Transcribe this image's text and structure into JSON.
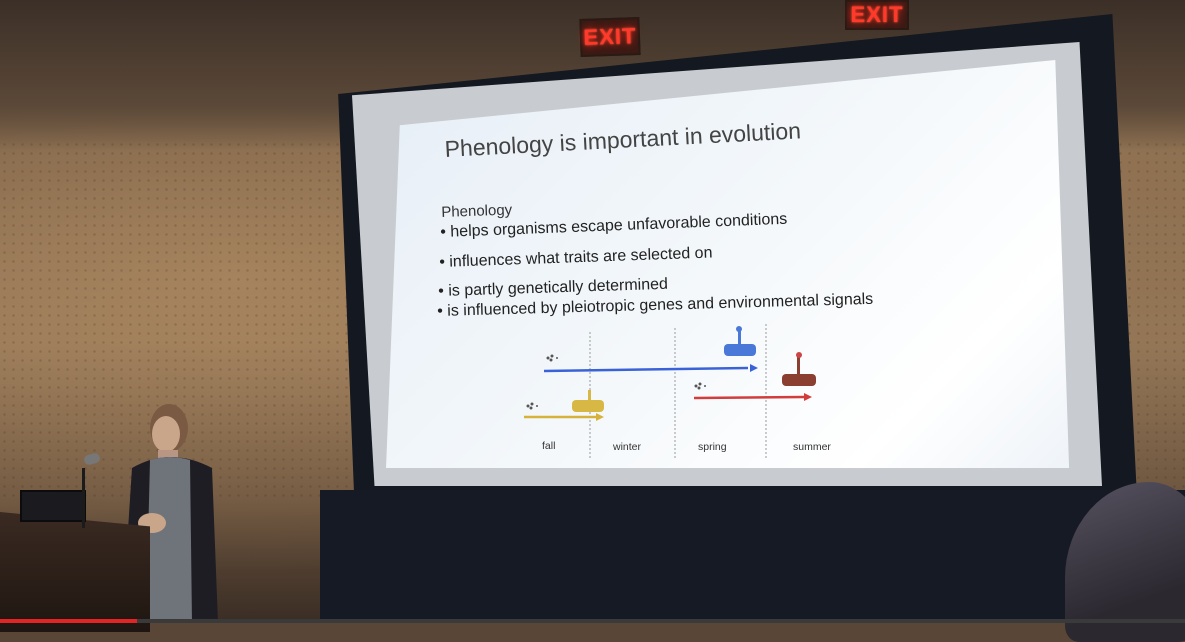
{
  "room": {
    "exit_signs": [
      "EXIT",
      "EXIT"
    ],
    "colors": {
      "wall": "#8e7254",
      "screen_frame": "#141820",
      "exit_text": "#ff3a2a"
    }
  },
  "slide": {
    "title": "Phenology is important in evolution",
    "subtitle": "Phenology",
    "bullets": [
      "helps organisms escape unfavorable conditions",
      "influences what traits are selected on",
      "is partly genetically determined",
      "is influenced by pleiotropic genes and environmental signals"
    ],
    "diagram": {
      "seasons": [
        "fall",
        "winter",
        "spring",
        "summer"
      ],
      "arrow_colors": {
        "blue": "#3a62d8",
        "yellow": "#d6b23a",
        "red": "#d23c3c"
      },
      "plant_colors": {
        "blue": "#4a78d8",
        "yellow": "#d8b845",
        "brown": "#8a3f30"
      }
    }
  },
  "video": {
    "played_fraction": 0.116,
    "colors": {
      "played": "#e32424"
    }
  }
}
